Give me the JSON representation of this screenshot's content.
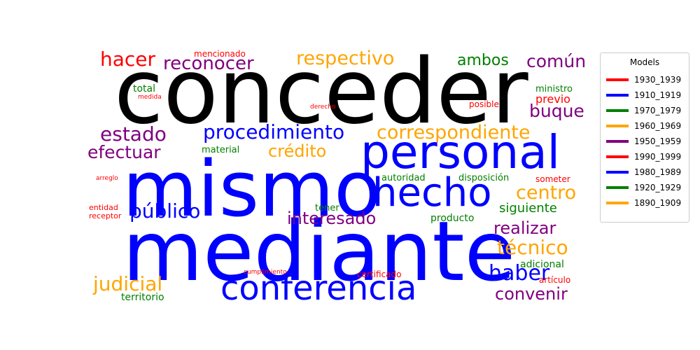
{
  "chart_data": {
    "type": "wordcloud",
    "legend": {
      "title": "Models",
      "placement": "right",
      "entries": [
        {
          "label": "1930_1939",
          "color": "#ff0000"
        },
        {
          "label": "1910_1919",
          "color": "#0000ff"
        },
        {
          "label": "1970_1979",
          "color": "#008000"
        },
        {
          "label": "1960_1969",
          "color": "#ffa500"
        },
        {
          "label": "1950_1959",
          "color": "#800080"
        },
        {
          "label": "1990_1999",
          "color": "#ff0000"
        },
        {
          "label": "1980_1989",
          "color": "#0000ff"
        },
        {
          "label": "1920_1929",
          "color": "#008000"
        },
        {
          "label": "1890_1909",
          "color": "#ffa500"
        }
      ]
    },
    "words": [
      {
        "text": "conceder",
        "color": "#000000",
        "weight": 1.0
      },
      {
        "text": "mismo",
        "color": "#0000ff",
        "weight": 0.95
      },
      {
        "text": "mediante",
        "color": "#0000ff",
        "weight": 1.0
      },
      {
        "text": "personal",
        "color": "#0000ff",
        "weight": 0.7
      },
      {
        "text": "hecho",
        "color": "#0000ff",
        "weight": 0.58
      },
      {
        "text": "conferencia",
        "color": "#0000ff",
        "weight": 0.48
      },
      {
        "text": "procedimiento",
        "color": "#0000ff",
        "weight": 0.26
      },
      {
        "text": "público",
        "color": "#0000ff",
        "weight": 0.26
      },
      {
        "text": "haber",
        "color": "#0000ff",
        "weight": 0.3
      },
      {
        "text": "correspondiente",
        "color": "#ffa500",
        "weight": 0.26
      },
      {
        "text": "respectivo",
        "color": "#ffa500",
        "weight": 0.26
      },
      {
        "text": "crédito",
        "color": "#ffa500",
        "weight": 0.24
      },
      {
        "text": "centro",
        "color": "#ffa500",
        "weight": 0.26
      },
      {
        "text": "técnico",
        "color": "#ffa500",
        "weight": 0.28
      },
      {
        "text": "judicial",
        "color": "#ffa500",
        "weight": 0.28
      },
      {
        "text": "estado",
        "color": "#800080",
        "weight": 0.26
      },
      {
        "text": "reconocer",
        "color": "#800080",
        "weight": 0.25
      },
      {
        "text": "efectuar",
        "color": "#800080",
        "weight": 0.24
      },
      {
        "text": "común",
        "color": "#800080",
        "weight": 0.24
      },
      {
        "text": "buque",
        "color": "#800080",
        "weight": 0.24
      },
      {
        "text": "interesado",
        "color": "#800080",
        "weight": 0.24
      },
      {
        "text": "realizar",
        "color": "#800080",
        "weight": 0.24
      },
      {
        "text": "convenir",
        "color": "#800080",
        "weight": 0.24
      },
      {
        "text": "hacer",
        "color": "#ff0000",
        "weight": 0.26
      },
      {
        "text": "ambos",
        "color": "#008000",
        "weight": 0.22
      },
      {
        "text": "siguiente",
        "color": "#008000",
        "weight": 0.18
      },
      {
        "text": "autoridad",
        "color": "#008000",
        "weight": 0.12
      },
      {
        "text": "disposición",
        "color": "#008000",
        "weight": 0.12
      },
      {
        "text": "material",
        "color": "#008000",
        "weight": 0.11
      },
      {
        "text": "total",
        "color": "#008000",
        "weight": 0.11
      },
      {
        "text": "ministro",
        "color": "#008000",
        "weight": 0.11
      },
      {
        "text": "tener",
        "color": "#008000",
        "weight": 0.11
      },
      {
        "text": "producto",
        "color": "#008000",
        "weight": 0.12
      },
      {
        "text": "adicional",
        "color": "#008000",
        "weight": 0.12
      },
      {
        "text": "territorio",
        "color": "#008000",
        "weight": 0.12
      },
      {
        "text": "mencionado",
        "color": "#ff0000",
        "weight": 0.1
      },
      {
        "text": "previo",
        "color": "#ff0000",
        "weight": 0.13
      },
      {
        "text": "posible",
        "color": "#ff0000",
        "weight": 0.1
      },
      {
        "text": "someter",
        "color": "#ff0000",
        "weight": 0.1
      },
      {
        "text": "medida",
        "color": "#ff0000",
        "weight": 0.07
      },
      {
        "text": "derecho",
        "color": "#ff0000",
        "weight": 0.07
      },
      {
        "text": "arreglo",
        "color": "#ff0000",
        "weight": 0.07
      },
      {
        "text": "entidad",
        "color": "#ff0000",
        "weight": 0.08
      },
      {
        "text": "receptor",
        "color": "#ff0000",
        "weight": 0.08
      },
      {
        "text": "cumplimiento",
        "color": "#ff0000",
        "weight": 0.07
      },
      {
        "text": "certificado",
        "color": "#ff0000",
        "weight": 0.09
      },
      {
        "text": "artículo",
        "color": "#ff0000",
        "weight": 0.09
      }
    ]
  }
}
